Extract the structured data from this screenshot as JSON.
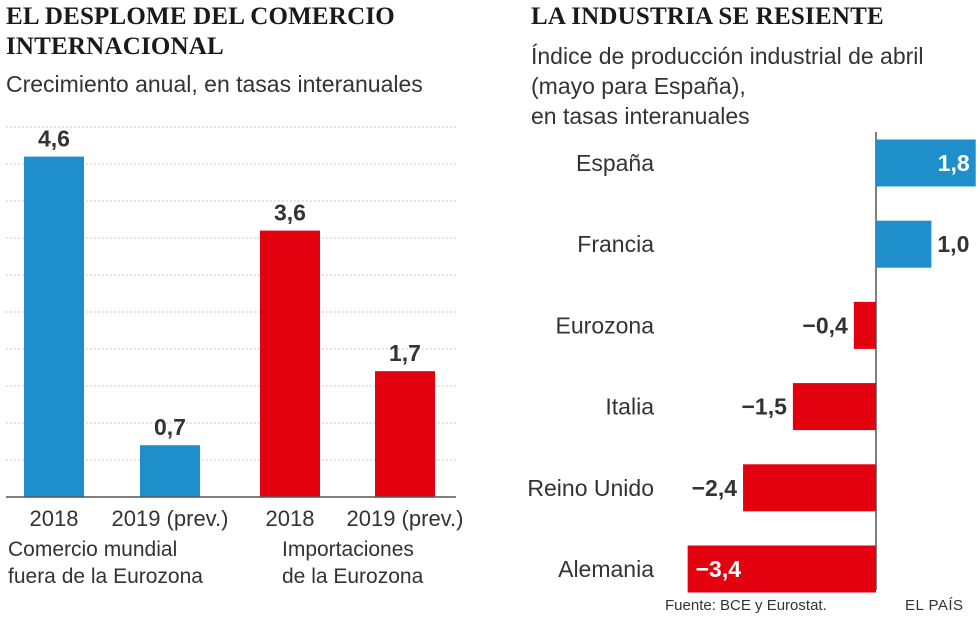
{
  "left": {
    "title_line1": "EL DESPLOME DEL COMERCIO",
    "title_line2": "INTERNACIONAL",
    "subtitle": "Crecimiento anual, en tasas interanuales"
  },
  "right": {
    "title": "LA INDUSTRIA SE RESIENTE",
    "subtitle_line1": "Índice de producción industrial de abril",
    "subtitle_line2": "(mayo para España),",
    "subtitle_line3": "en tasas interanuales"
  },
  "colors": {
    "blue": "#1f8fcb",
    "red": "#e3000f",
    "grid": "#b5b5b5",
    "axis": "#555555"
  },
  "chart_data": [
    {
      "type": "bar",
      "title": "EL DESPLOME DEL COMERCIO INTERNACIONAL",
      "subtitle": "Crecimiento anual, en tasas interanuales",
      "ylim": [
        0,
        5
      ],
      "grid": true,
      "bars": [
        {
          "label": "2018",
          "value": 4.6,
          "value_label": "4,6",
          "color": "blue"
        },
        {
          "label": "2019 (prev.)",
          "value": 0.7,
          "value_label": "0,7",
          "color": "blue"
        },
        {
          "label": "2018",
          "value": 3.6,
          "value_label": "3,6",
          "color": "red"
        },
        {
          "label": "2019 (prev.)",
          "value": 1.7,
          "value_label": "1,7",
          "color": "red"
        }
      ],
      "groups": [
        {
          "line1": "Comercio mundial",
          "line2": "fuera de la Eurozona",
          "bars": [
            0,
            1
          ]
        },
        {
          "line1": "Importaciones",
          "line2": "de la Eurozona",
          "bars": [
            2,
            3
          ]
        }
      ]
    },
    {
      "type": "bar",
      "orientation": "horizontal",
      "title": "LA INDUSTRIA SE RESIENTE",
      "subtitle": "Índice de producción industrial de abril (mayo para España), en tasas interanuales",
      "xlim": [
        -3.4,
        1.8
      ],
      "categories": [
        "España",
        "Francia",
        "Eurozona",
        "Italia",
        "Reino Unido",
        "Alemania"
      ],
      "values": [
        1.8,
        1.0,
        -0.4,
        -1.5,
        -2.4,
        -3.4
      ],
      "value_labels": [
        "1,8",
        "1,0",
        "−0,4",
        "−1,5",
        "−2,4",
        "−3,4"
      ]
    }
  ],
  "footer": {
    "source": "Fuente: BCE y Eurostat.",
    "brand": "EL PAÍS"
  }
}
